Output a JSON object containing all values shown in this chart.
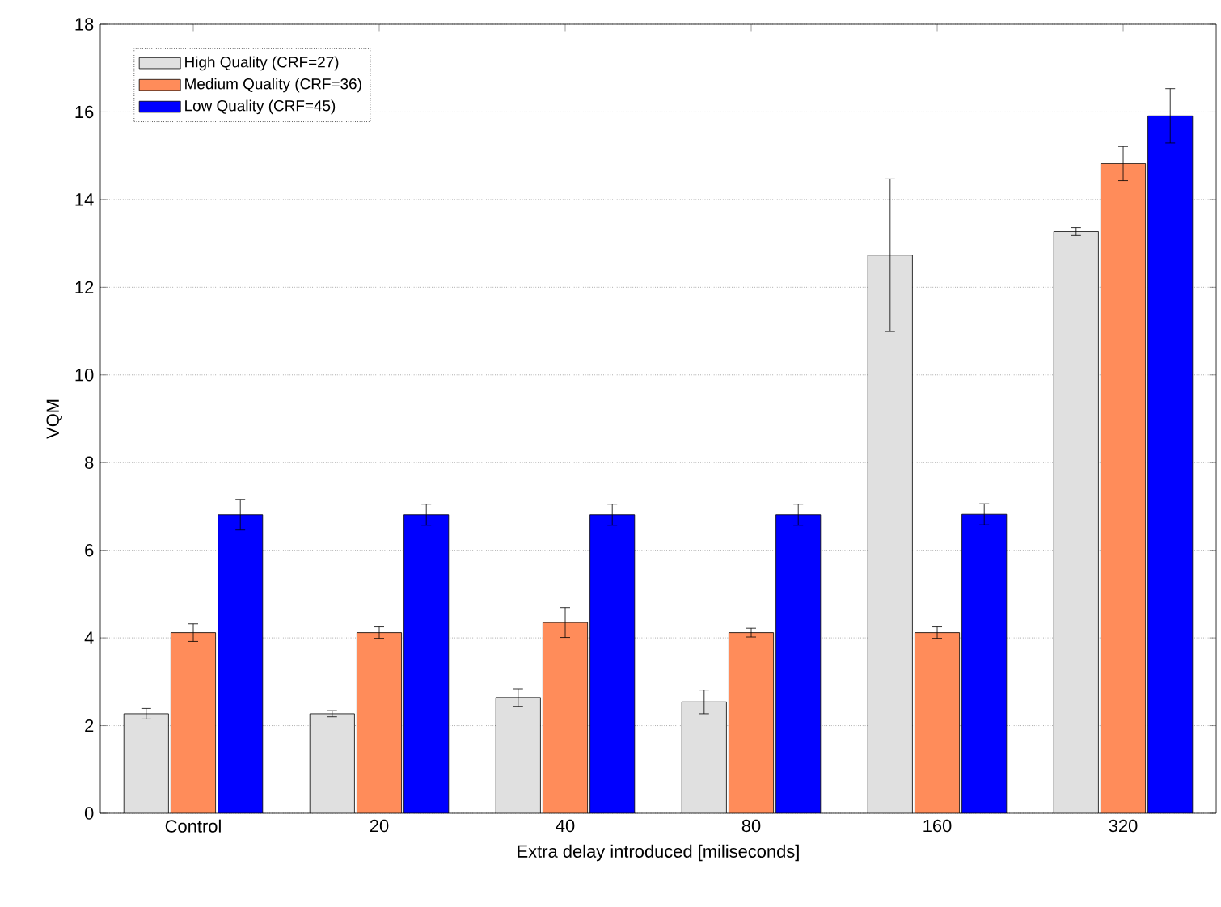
{
  "chart_data": {
    "type": "bar",
    "xlabel": "Extra delay introduced [miliseconds]",
    "ylabel": "VQM",
    "categories": [
      "Control",
      "20",
      "40",
      "80",
      "160",
      "320"
    ],
    "ylim": [
      0,
      18
    ],
    "yticks": [
      0,
      2,
      4,
      6,
      8,
      10,
      12,
      14,
      16,
      18
    ],
    "grid": "y",
    "legend": "top left",
    "series": [
      {
        "name": "High Quality (CRF=27)",
        "color": "#e0e0e0",
        "values": [
          2.27,
          2.27,
          2.64,
          2.54,
          12.73,
          13.27
        ],
        "errors": [
          0.12,
          0.07,
          0.2,
          0.27,
          1.74,
          0.09
        ]
      },
      {
        "name": "Medium Quality (CRF=36)",
        "color": "#ff8c5a",
        "values": [
          4.12,
          4.12,
          4.35,
          4.12,
          4.12,
          14.82
        ],
        "errors": [
          0.2,
          0.13,
          0.34,
          0.1,
          0.13,
          0.39
        ]
      },
      {
        "name": "Low Quality (CRF=45)",
        "color": "#0000ff",
        "values": [
          6.81,
          6.81,
          6.81,
          6.81,
          6.82,
          15.91
        ],
        "errors": [
          0.35,
          0.24,
          0.24,
          0.24,
          0.24,
          0.62
        ]
      }
    ]
  }
}
